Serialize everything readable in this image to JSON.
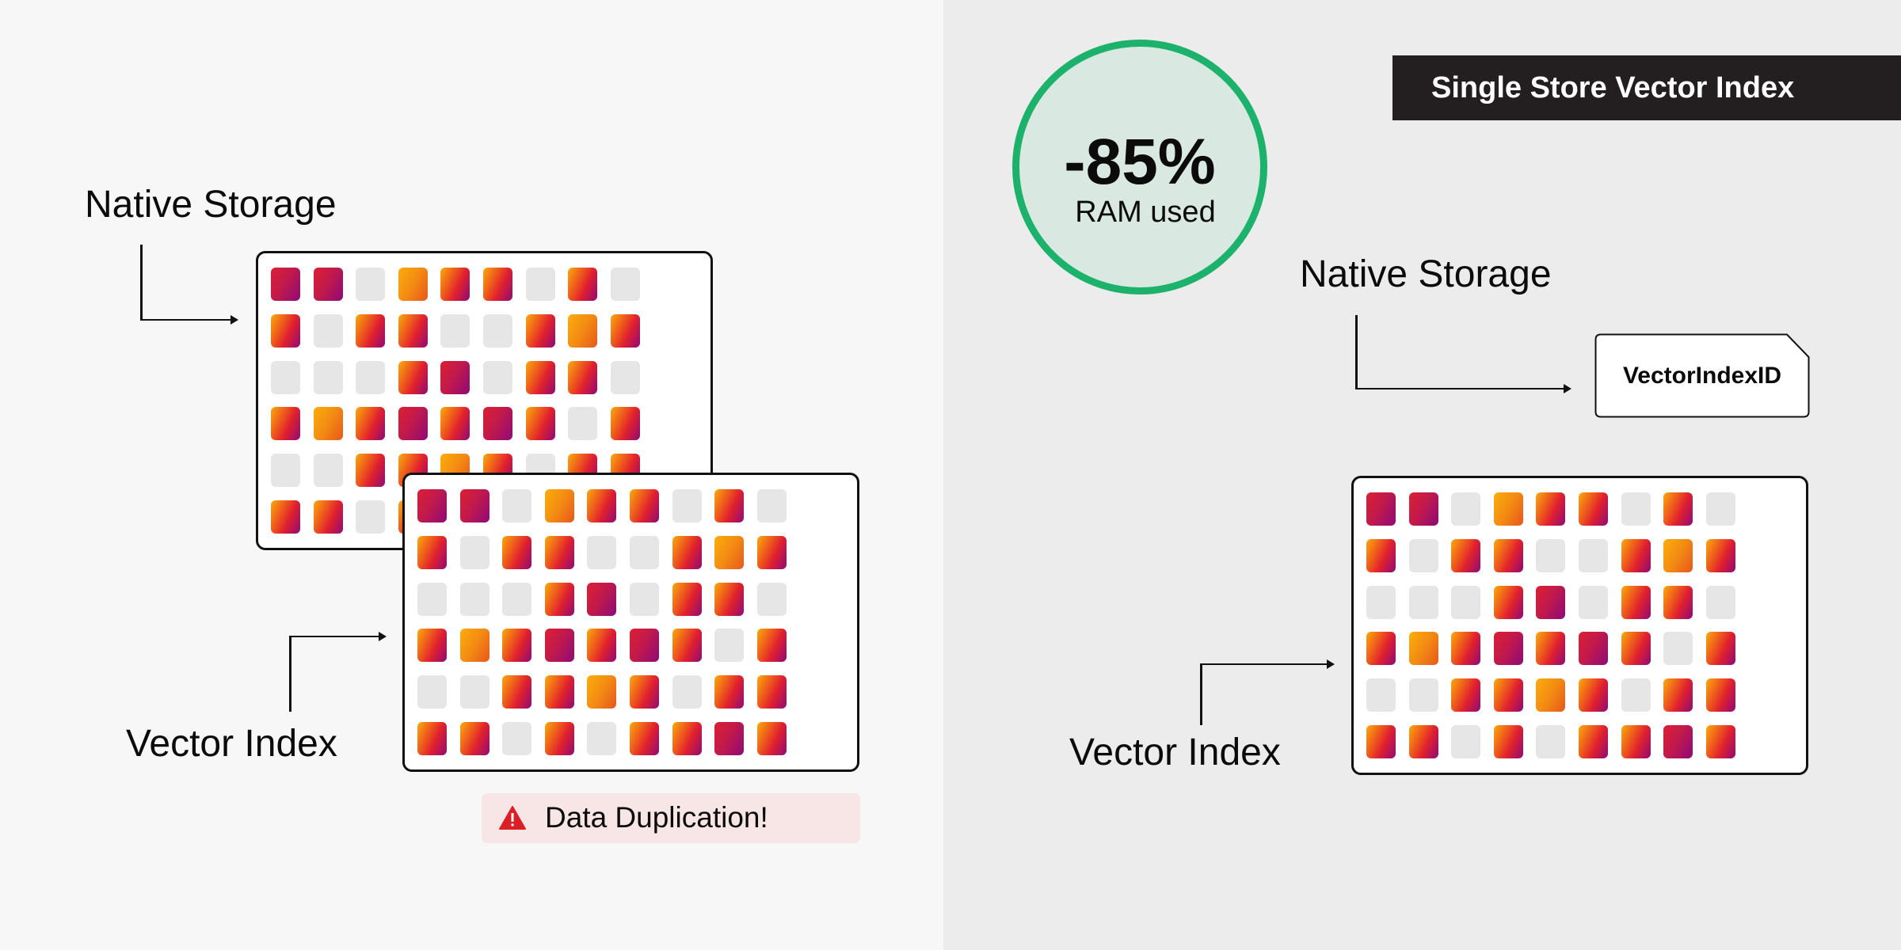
{
  "left_panel": {
    "native_storage_label": "Native Storage",
    "vector_index_label": "Vector Index",
    "warning": {
      "icon": "warning-triangle-icon",
      "text": "Data Duplication!",
      "color": "#dc1f26"
    }
  },
  "right_panel": {
    "badge_title": "Single Store Vector Index",
    "metric": {
      "value": "-85%",
      "label": "RAM used",
      "ring_color": "#1cb26b"
    },
    "native_storage_label": "Native Storage",
    "vector_index_id": "VectorIndexID",
    "vector_index_label": "Vector Index"
  },
  "grid_pattern": [
    [
      "m",
      "m",
      "g",
      "y",
      "o",
      "o",
      "g",
      "o",
      "g"
    ],
    [
      "o",
      "g",
      "o",
      "o",
      "g",
      "g",
      "o",
      "y",
      "o"
    ],
    [
      "g",
      "g",
      "g",
      "o",
      "m",
      "g",
      "o",
      "o",
      "g"
    ],
    [
      "o",
      "y",
      "o",
      "m",
      "o",
      "m",
      "o",
      "g",
      "o"
    ],
    [
      "g",
      "g",
      "o",
      "o",
      "y",
      "o",
      "g",
      "o",
      "o"
    ],
    [
      "o",
      "o",
      "g",
      "o",
      "g",
      "o",
      "o",
      "m",
      "o"
    ]
  ],
  "colors": {
    "yellow": "#f9ab0c",
    "red": "#e0202e",
    "purple": "#8f0a78",
    "empty": "#e6e6e6"
  }
}
